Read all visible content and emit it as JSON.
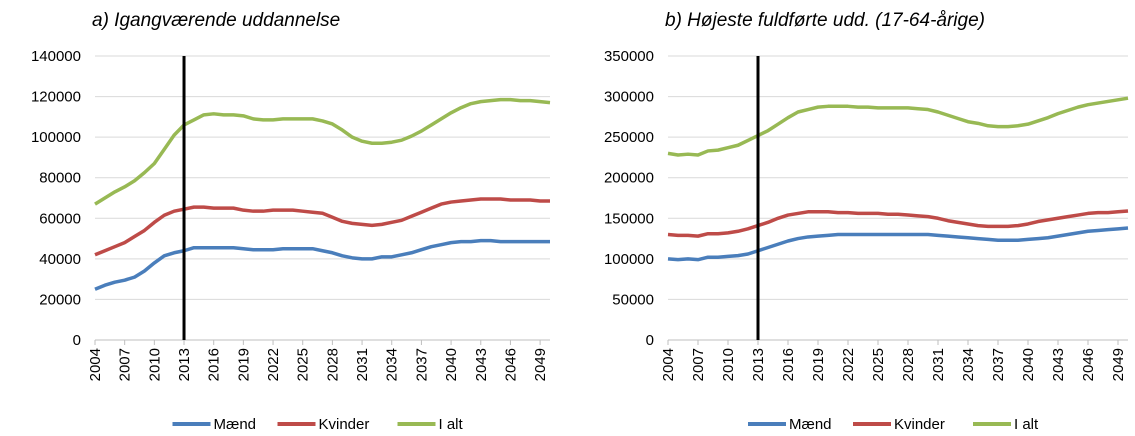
{
  "chart_data": [
    {
      "type": "line",
      "title": "a) Igangværende uddannelse",
      "x": [
        2004,
        2005,
        2006,
        2007,
        2008,
        2009,
        2010,
        2011,
        2012,
        2013,
        2014,
        2015,
        2016,
        2017,
        2018,
        2019,
        2020,
        2021,
        2022,
        2023,
        2024,
        2025,
        2026,
        2027,
        2028,
        2029,
        2030,
        2031,
        2032,
        2033,
        2034,
        2035,
        2036,
        2037,
        2038,
        2039,
        2040,
        2041,
        2042,
        2043,
        2044,
        2045,
        2046,
        2047,
        2048,
        2049,
        2050
      ],
      "xlim": [
        2004,
        2050
      ],
      "xticks": [
        2004,
        2007,
        2010,
        2013,
        2016,
        2019,
        2022,
        2025,
        2028,
        2031,
        2034,
        2037,
        2040,
        2043,
        2046,
        2049
      ],
      "ylim": [
        0,
        140000
      ],
      "yticks": [
        0,
        20000,
        40000,
        60000,
        80000,
        100000,
        120000,
        140000
      ],
      "grid": true,
      "vline_x": 2013,
      "series": [
        {
          "name": "Mænd",
          "color": "#4a7ebb",
          "values": [
            25000,
            27000,
            28500,
            29500,
            31000,
            34000,
            38000,
            41500,
            43000,
            44000,
            45500,
            45500,
            45500,
            45500,
            45500,
            45000,
            44500,
            44500,
            44500,
            45000,
            45000,
            45000,
            45000,
            44000,
            43000,
            41500,
            40500,
            40000,
            40000,
            41000,
            41000,
            42000,
            43000,
            44500,
            46000,
            47000,
            48000,
            48500,
            48500,
            49000,
            49000,
            48500,
            48500,
            48500,
            48500,
            48500,
            48500
          ]
        },
        {
          "name": "Kvinder",
          "color": "#be4b48",
          "values": [
            42000,
            44000,
            46000,
            48000,
            51000,
            54000,
            58000,
            61500,
            63500,
            64500,
            65500,
            65500,
            65000,
            65000,
            65000,
            64000,
            63500,
            63500,
            64000,
            64000,
            64000,
            63500,
            63000,
            62500,
            60500,
            58500,
            57500,
            57000,
            56500,
            57000,
            58000,
            59000,
            61000,
            63000,
            65000,
            67000,
            68000,
            68500,
            69000,
            69500,
            69500,
            69500,
            69000,
            69000,
            69000,
            68500,
            68500
          ]
        },
        {
          "name": "I alt",
          "color": "#98b954",
          "values": [
            67000,
            70000,
            73000,
            75500,
            78500,
            82500,
            87000,
            94000,
            101000,
            106000,
            108500,
            111000,
            111500,
            111000,
            111000,
            110500,
            109000,
            108500,
            108500,
            109000,
            109000,
            109000,
            109000,
            108000,
            106500,
            103500,
            100000,
            98000,
            97000,
            97000,
            97500,
            98500,
            100500,
            103000,
            106000,
            109000,
            112000,
            114500,
            116500,
            117500,
            118000,
            118500,
            118500,
            118000,
            118000,
            117500,
            117000
          ]
        }
      ]
    },
    {
      "type": "line",
      "title": "b) Højeste fuldførte udd. (17-64-årige)",
      "x": [
        2004,
        2005,
        2006,
        2007,
        2008,
        2009,
        2010,
        2011,
        2012,
        2013,
        2014,
        2015,
        2016,
        2017,
        2018,
        2019,
        2020,
        2021,
        2022,
        2023,
        2024,
        2025,
        2026,
        2027,
        2028,
        2029,
        2030,
        2031,
        2032,
        2033,
        2034,
        2035,
        2036,
        2037,
        2038,
        2039,
        2040,
        2041,
        2042,
        2043,
        2044,
        2045,
        2046,
        2047,
        2048,
        2049,
        2050
      ],
      "xlim": [
        2004,
        2050
      ],
      "xticks": [
        2004,
        2007,
        2010,
        2013,
        2016,
        2019,
        2022,
        2025,
        2028,
        2031,
        2034,
        2037,
        2040,
        2043,
        2046,
        2049
      ],
      "ylim": [
        0,
        350000
      ],
      "yticks": [
        0,
        50000,
        100000,
        150000,
        200000,
        250000,
        300000,
        350000
      ],
      "grid": true,
      "vline_x": 2013,
      "series": [
        {
          "name": "Mænd",
          "color": "#4a7ebb",
          "values": [
            100000,
            99000,
            100000,
            99000,
            102000,
            102000,
            103000,
            104000,
            106000,
            110000,
            114000,
            118000,
            122000,
            125000,
            127000,
            128000,
            129000,
            130000,
            130000,
            130000,
            130000,
            130000,
            130000,
            130000,
            130000,
            130000,
            130000,
            129000,
            128000,
            127000,
            126000,
            125000,
            124000,
            123000,
            123000,
            123000,
            124000,
            125000,
            126000,
            128000,
            130000,
            132000,
            134000,
            135000,
            136000,
            137000,
            138000
          ]
        },
        {
          "name": "Kvinder",
          "color": "#be4b48",
          "values": [
            130000,
            129000,
            129000,
            128000,
            131000,
            131000,
            132000,
            134000,
            137000,
            141000,
            145000,
            150000,
            154000,
            156000,
            158000,
            158000,
            158000,
            157000,
            157000,
            156000,
            156000,
            156000,
            155000,
            155000,
            154000,
            153000,
            152000,
            150000,
            147000,
            145000,
            143000,
            141000,
            140000,
            140000,
            140000,
            141000,
            143000,
            146000,
            148000,
            150000,
            152000,
            154000,
            156000,
            157000,
            157000,
            158000,
            159000
          ]
        },
        {
          "name": "I alt",
          "color": "#98b954",
          "values": [
            230000,
            228000,
            229000,
            228000,
            233000,
            234000,
            237000,
            240000,
            246000,
            252000,
            258000,
            266000,
            274000,
            281000,
            284000,
            287000,
            288000,
            288000,
            288000,
            287000,
            287000,
            286000,
            286000,
            286000,
            286000,
            285000,
            284000,
            281000,
            277000,
            273000,
            269000,
            267000,
            264000,
            263000,
            263000,
            264000,
            266000,
            270000,
            274000,
            279000,
            283000,
            287000,
            290000,
            292000,
            294000,
            296000,
            298000
          ]
        }
      ]
    }
  ]
}
